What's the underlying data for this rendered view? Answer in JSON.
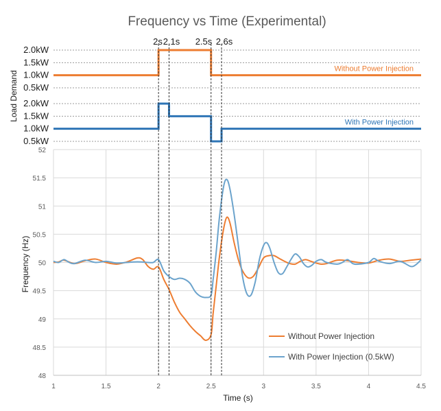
{
  "chart_data": [
    {
      "type": "line",
      "title": "Frequency vs Time (Experimental)",
      "ylabel": "Load Demand",
      "yticks": [
        "2.0kW",
        "1.5kW",
        "1.0kW",
        "0.5kW"
      ],
      "ylim": [
        0.5,
        2.0
      ],
      "x_markers": [
        {
          "x": 2.0,
          "label": "2s"
        },
        {
          "x": 2.1,
          "label": "2.1s"
        },
        {
          "x": 2.5,
          "label": "2.5s"
        },
        {
          "x": 2.6,
          "label": "2.6s"
        }
      ],
      "series": [
        {
          "name": "Without Power Injection",
          "color": "#ED7D31",
          "steps": [
            [
              1.0,
              1.0
            ],
            [
              2.0,
              2.0
            ],
            [
              2.5,
              1.0
            ],
            [
              4.5,
              1.0
            ]
          ]
        }
      ]
    },
    {
      "type": "line",
      "ylabel": "",
      "yticks": [
        "2.0kW",
        "1.5kW",
        "1.0kW",
        "0.5kW"
      ],
      "ylim": [
        0.5,
        2.0
      ],
      "series": [
        {
          "name": "With Power Injection",
          "color": "#2E75B6",
          "steps": [
            [
              1.0,
              1.0
            ],
            [
              2.0,
              2.0
            ],
            [
              2.1,
              1.5
            ],
            [
              2.5,
              0.5
            ],
            [
              2.6,
              1.0
            ],
            [
              4.5,
              1.0
            ]
          ]
        }
      ]
    },
    {
      "type": "line",
      "xlabel": "Time (s)",
      "ylabel": "Frequency (Hz)",
      "xlim": [
        1,
        4.5
      ],
      "ylim": [
        48,
        52
      ],
      "xticks": [
        "1",
        "1.5",
        "2",
        "2.5",
        "3",
        "3.5",
        "4",
        "4.5"
      ],
      "yticks": [
        "48",
        "48.5",
        "49",
        "49.5",
        "50",
        "50.5",
        "51",
        "51.5",
        "52"
      ],
      "legend": "bottom-right",
      "series": [
        {
          "name": "Without Power Injection",
          "color": "#ED7D31",
          "points": [
            [
              1.0,
              50.0
            ],
            [
              1.05,
              50.01
            ],
            [
              1.1,
              50.04
            ],
            [
              1.2,
              49.98
            ],
            [
              1.3,
              50.03
            ],
            [
              1.4,
              50.06
            ],
            [
              1.5,
              50.0
            ],
            [
              1.6,
              49.97
            ],
            [
              1.7,
              50.01
            ],
            [
              1.8,
              50.08
            ],
            [
              1.85,
              50.05
            ],
            [
              1.9,
              49.93
            ],
            [
              1.95,
              49.88
            ],
            [
              2.0,
              49.92
            ],
            [
              2.05,
              49.7
            ],
            [
              2.1,
              49.52
            ],
            [
              2.15,
              49.3
            ],
            [
              2.2,
              49.12
            ],
            [
              2.25,
              49.0
            ],
            [
              2.3,
              48.88
            ],
            [
              2.35,
              48.78
            ],
            [
              2.4,
              48.7
            ],
            [
              2.45,
              48.62
            ],
            [
              2.5,
              48.72
            ],
            [
              2.52,
              49.1
            ],
            [
              2.55,
              49.6
            ],
            [
              2.58,
              50.1
            ],
            [
              2.62,
              50.6
            ],
            [
              2.65,
              50.8
            ],
            [
              2.68,
              50.7
            ],
            [
              2.72,
              50.35
            ],
            [
              2.76,
              50.05
            ],
            [
              2.8,
              49.85
            ],
            [
              2.85,
              49.73
            ],
            [
              2.9,
              49.75
            ],
            [
              2.95,
              49.9
            ],
            [
              3.0,
              50.08
            ],
            [
              3.05,
              50.12
            ],
            [
              3.1,
              50.12
            ],
            [
              3.15,
              50.07
            ],
            [
              3.2,
              50.02
            ],
            [
              3.25,
              49.98
            ],
            [
              3.3,
              49.97
            ],
            [
              3.35,
              50.02
            ],
            [
              3.4,
              50.05
            ],
            [
              3.45,
              50.02
            ],
            [
              3.5,
              49.99
            ],
            [
              3.55,
              49.97
            ],
            [
              3.6,
              49.98
            ],
            [
              3.7,
              50.04
            ],
            [
              3.8,
              50.03
            ],
            [
              3.9,
              50.0
            ],
            [
              4.0,
              49.99
            ],
            [
              4.1,
              50.04
            ],
            [
              4.2,
              50.06
            ],
            [
              4.3,
              50.02
            ],
            [
              4.4,
              50.04
            ],
            [
              4.5,
              50.06
            ]
          ]
        },
        {
          "name": "With Power Injection (0.5kW)",
          "color": "#6BA3CC",
          "points": [
            [
              1.0,
              50.02
            ],
            [
              1.05,
              50.0
            ],
            [
              1.1,
              50.05
            ],
            [
              1.15,
              50.0
            ],
            [
              1.2,
              49.98
            ],
            [
              1.3,
              50.04
            ],
            [
              1.4,
              50.0
            ],
            [
              1.5,
              50.02
            ],
            [
              1.6,
              49.99
            ],
            [
              1.7,
              50.0
            ],
            [
              1.8,
              50.01
            ],
            [
              1.9,
              50.0
            ],
            [
              1.95,
              50.0
            ],
            [
              2.0,
              50.05
            ],
            [
              2.05,
              49.85
            ],
            [
              2.1,
              49.75
            ],
            [
              2.15,
              49.7
            ],
            [
              2.2,
              49.72
            ],
            [
              2.25,
              49.7
            ],
            [
              2.3,
              49.63
            ],
            [
              2.35,
              49.48
            ],
            [
              2.4,
              49.4
            ],
            [
              2.45,
              49.38
            ],
            [
              2.5,
              49.42
            ],
            [
              2.52,
              49.7
            ],
            [
              2.55,
              50.2
            ],
            [
              2.58,
              50.8
            ],
            [
              2.62,
              51.35
            ],
            [
              2.65,
              51.47
            ],
            [
              2.68,
              51.3
            ],
            [
              2.72,
              50.85
            ],
            [
              2.76,
              50.3
            ],
            [
              2.8,
              49.75
            ],
            [
              2.84,
              49.45
            ],
            [
              2.88,
              49.42
            ],
            [
              2.92,
              49.65
            ],
            [
              2.96,
              50.05
            ],
            [
              3.0,
              50.3
            ],
            [
              3.03,
              50.35
            ],
            [
              3.06,
              50.25
            ],
            [
              3.1,
              50.0
            ],
            [
              3.14,
              49.82
            ],
            [
              3.18,
              49.8
            ],
            [
              3.22,
              49.92
            ],
            [
              3.26,
              50.05
            ],
            [
              3.3,
              50.15
            ],
            [
              3.34,
              50.1
            ],
            [
              3.38,
              49.98
            ],
            [
              3.42,
              49.92
            ],
            [
              3.46,
              49.95
            ],
            [
              3.5,
              50.02
            ],
            [
              3.55,
              50.05
            ],
            [
              3.6,
              50.0
            ],
            [
              3.7,
              49.97
            ],
            [
              3.75,
              50.0
            ],
            [
              3.8,
              50.05
            ],
            [
              3.85,
              49.98
            ],
            [
              3.9,
              49.97
            ],
            [
              4.0,
              50.0
            ],
            [
              4.05,
              50.07
            ],
            [
              4.1,
              50.02
            ],
            [
              4.2,
              49.98
            ],
            [
              4.3,
              50.02
            ],
            [
              4.4,
              49.93
            ],
            [
              4.45,
              49.96
            ],
            [
              4.5,
              50.05
            ]
          ]
        }
      ]
    }
  ]
}
